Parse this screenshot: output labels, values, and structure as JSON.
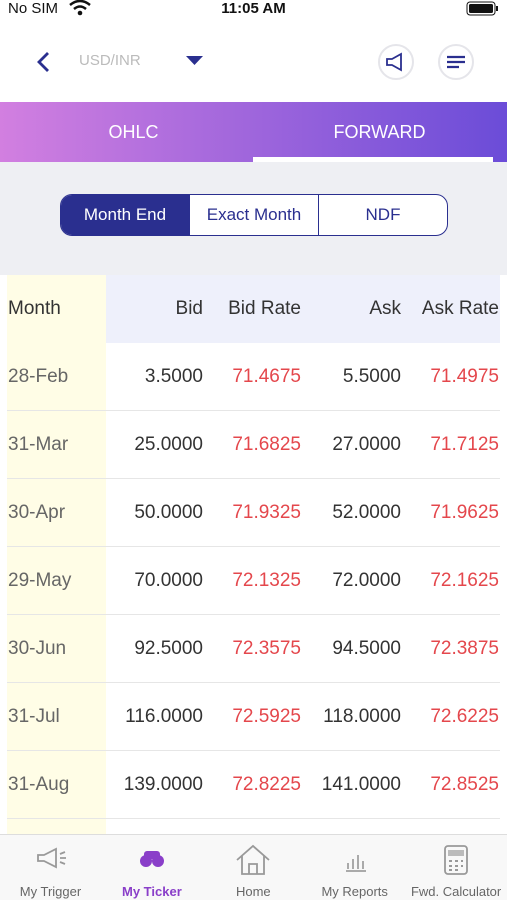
{
  "status_bar": {
    "carrier": "No SIM",
    "time": "11:05 AM"
  },
  "header": {
    "currency": "USD/INR"
  },
  "tabs": [
    "OHLC",
    "FORWARD"
  ],
  "segments": [
    "Month End",
    "Exact Month",
    "NDF"
  ],
  "table": {
    "columns": [
      "Month",
      "Bid",
      "Bid Rate",
      "Ask",
      "Ask Rate"
    ],
    "rows": [
      [
        "28-Feb",
        "3.5000",
        "71.4675",
        "5.5000",
        "71.4975"
      ],
      [
        "31-Mar",
        "25.0000",
        "71.6825",
        "27.0000",
        "71.7125"
      ],
      [
        "30-Apr",
        "50.0000",
        "71.9325",
        "52.0000",
        "71.9625"
      ],
      [
        "29-May",
        "70.0000",
        "72.1325",
        "72.0000",
        "72.1625"
      ],
      [
        "30-Jun",
        "92.5000",
        "72.3575",
        "94.5000",
        "72.3875"
      ],
      [
        "31-Jul",
        "116.0000",
        "72.5925",
        "118.0000",
        "72.6225"
      ],
      [
        "31-Aug",
        "139.0000",
        "72.8225",
        "141.0000",
        "72.8525"
      ]
    ]
  },
  "nav": [
    "My Trigger",
    "My Ticker",
    "Home",
    "My Reports",
    "Fwd. Calculator"
  ]
}
